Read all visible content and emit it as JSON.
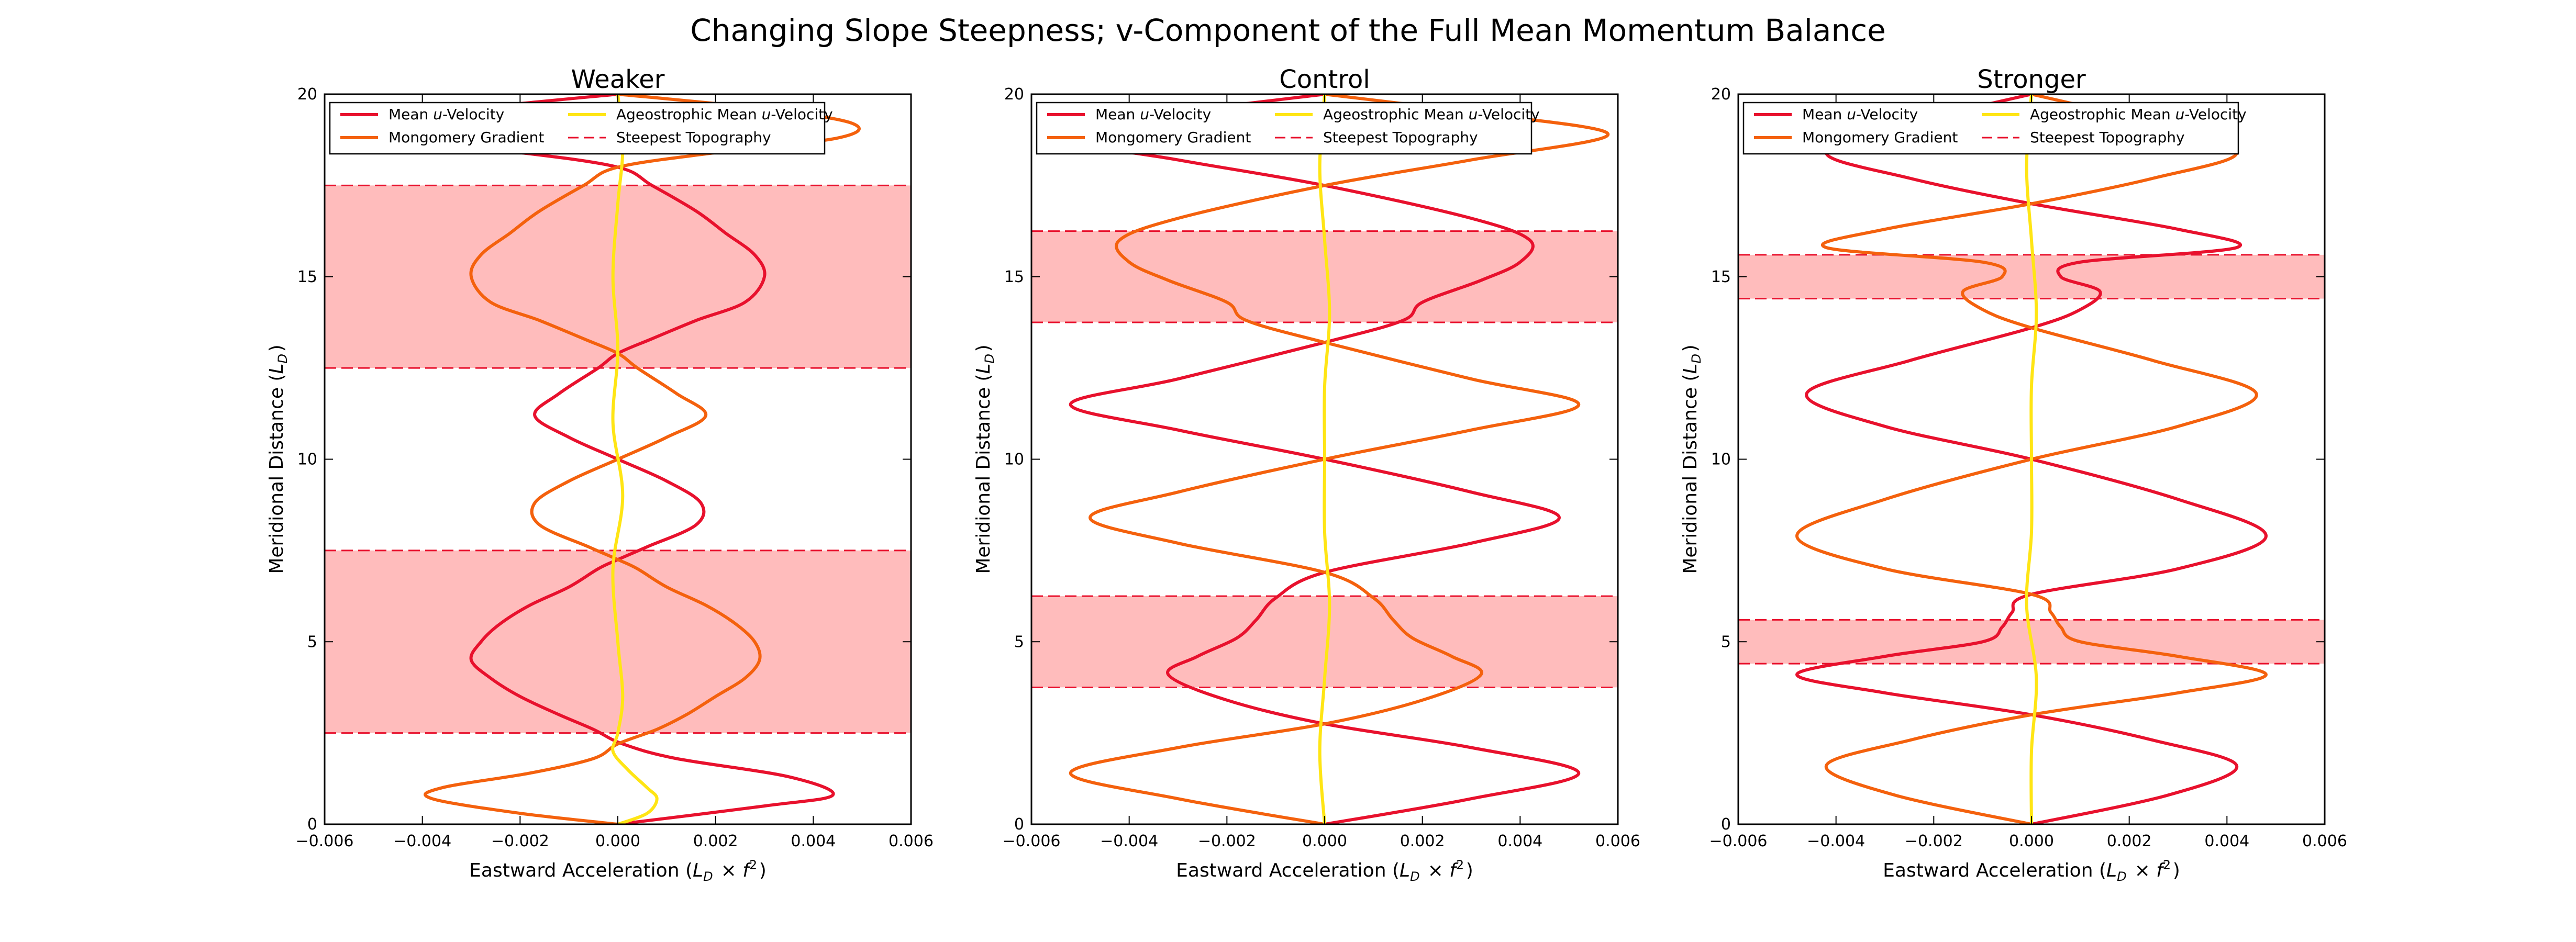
{
  "figure_title": "Changing Slope Steepness; v-Component of the Full Mean Momentum Balance",
  "colors": {
    "mean_u_velocity": "#e8112d",
    "montgomery_gradient": "#f4610d",
    "ageostrophic_mean_u_velocity": "#ffe514",
    "steepest_topography": "#e8112d",
    "band_fill": "#ffbcbc"
  },
  "chart_data": [
    {
      "type": "line",
      "title": "Weaker",
      "xlabel": "Eastward Acceleration (L_D × f²)",
      "ylabel": "Meridional Distance (L_D)",
      "xlim": [
        -0.006,
        0.006
      ],
      "ylim": [
        0,
        20
      ],
      "xticks": [
        "−0.006",
        "−0.004",
        "−0.002",
        "0.000",
        "0.002",
        "0.004",
        "0.006"
      ],
      "yticks": [
        "0",
        "5",
        "10",
        "15",
        "20"
      ],
      "legend_position": "upper-left",
      "legend": [
        "Mean u-Velocity",
        "Mongomery Gradient",
        "Ageostrophic Mean u-Velocity",
        "Steepest Topography"
      ],
      "steepest_topography_bands": [
        [
          2.5,
          7.5
        ],
        [
          12.5,
          17.5
        ]
      ],
      "series": [
        {
          "name": "Mean u-Velocity",
          "y": [
            0,
            0.5,
            0.8,
            1.3,
            1.8,
            2.2,
            2.6,
            3.0,
            3.5,
            4.0,
            4.5,
            5.0,
            5.5,
            6.0,
            6.5,
            7.0,
            7.25,
            7.6,
            8.2,
            8.8,
            9.4,
            10.0,
            10.6,
            11.2,
            11.8,
            12.5,
            12.9,
            13.3,
            13.8,
            14.3,
            15.0,
            15.6,
            16.2,
            16.8,
            17.5,
            18.0,
            18.4,
            18.8,
            19.2,
            19.6,
            20.0
          ],
          "x": [
            0.0,
            0.003,
            0.0044,
            0.0035,
            0.0012,
            0.0001,
            -0.0005,
            -0.0012,
            -0.002,
            -0.0026,
            -0.003,
            -0.0028,
            -0.0024,
            -0.0018,
            -0.001,
            -0.0004,
            0.0,
            0.0006,
            0.0016,
            0.0017,
            0.001,
            0.0,
            -0.001,
            -0.0017,
            -0.0012,
            -0.0004,
            0.0,
            0.0007,
            0.0016,
            0.0026,
            0.003,
            0.0028,
            0.0022,
            0.0016,
            0.0007,
            0.0,
            -0.002,
            -0.005,
            -0.005,
            -0.003,
            0.0
          ]
        },
        {
          "name": "Mongomery Gradient",
          "y": [
            0,
            0.3,
            0.7,
            1.0,
            1.4,
            1.8,
            2.2,
            2.6,
            3.0,
            3.5,
            4.0,
            4.5,
            5.0,
            5.5,
            6.0,
            6.5,
            7.0,
            7.25,
            7.6,
            8.2,
            8.8,
            9.4,
            10.0,
            10.6,
            11.2,
            11.8,
            12.5,
            12.9,
            13.3,
            13.8,
            14.3,
            15.0,
            15.6,
            16.2,
            16.8,
            17.5,
            18.0,
            18.4,
            18.8,
            19.2,
            19.6,
            20.0
          ],
          "x": [
            0.0,
            -0.002,
            -0.0038,
            -0.0036,
            -0.0018,
            -0.0005,
            0.0,
            0.0008,
            0.0014,
            0.002,
            0.0026,
            0.0029,
            0.0028,
            0.0024,
            0.0018,
            0.001,
            0.0004,
            0.0,
            -0.0006,
            -0.0016,
            -0.0017,
            -0.001,
            0.0,
            0.001,
            0.0018,
            0.0012,
            0.0004,
            0.0,
            -0.0007,
            -0.0016,
            -0.0026,
            -0.003,
            -0.0028,
            -0.0022,
            -0.0016,
            -0.0007,
            0.0,
            0.002,
            0.0045,
            0.0048,
            0.003,
            0.0
          ]
        },
        {
          "name": "Ageostrophic Mean u-Velocity",
          "y": [
            0,
            0.3,
            0.7,
            1.0,
            1.5,
            2.0,
            2.5,
            3.5,
            5.0,
            7.0,
            9.0,
            11.0,
            13.0,
            15.0,
            17.0,
            18.5,
            20.0
          ],
          "x": [
            0.0,
            0.0006,
            0.0008,
            0.0006,
            0.0002,
            -0.0001,
            0.0,
            0.0001,
            0.0,
            -0.0001,
            0.0001,
            -0.0001,
            0.0,
            -0.0001,
            0.0,
            0.0001,
            0.0
          ]
        }
      ]
    },
    {
      "type": "line",
      "title": "Control",
      "xlabel": "Eastward Acceleration (L_D × f²)",
      "ylabel": "Meridional Distance (L_D)",
      "xlim": [
        -0.006,
        0.006
      ],
      "ylim": [
        0,
        20
      ],
      "xticks": [
        "−0.006",
        "−0.004",
        "−0.002",
        "0.000",
        "0.002",
        "0.004",
        "0.006"
      ],
      "yticks": [
        "0",
        "5",
        "10",
        "15",
        "20"
      ],
      "legend_position": "upper-left",
      "legend": [
        "Mean u-Velocity",
        "Mongomery Gradient",
        "Ageostrophic Mean u-Velocity",
        "Steepest Topography"
      ],
      "steepest_topography_bands": [
        [
          3.75,
          6.25
        ],
        [
          13.75,
          16.25
        ]
      ],
      "series": [
        {
          "name": "Mean u-Velocity",
          "y": [
            0,
            0.7,
            1.4,
            2.1,
            2.75,
            3.4,
            4.1,
            4.6,
            5.1,
            5.6,
            6.2,
            6.9,
            7.7,
            8.4,
            9.1,
            10.0,
            10.8,
            11.5,
            12.2,
            13.2,
            13.8,
            14.3,
            14.9,
            15.4,
            16.0,
            16.6,
            17.5,
            18.2,
            18.9,
            19.5,
            20.0
          ],
          "x": [
            0.0,
            0.003,
            0.0052,
            0.003,
            0.0,
            -0.002,
            -0.0032,
            -0.0026,
            -0.0018,
            -0.0014,
            -0.001,
            0.0,
            0.003,
            0.0048,
            0.003,
            0.0,
            -0.003,
            -0.0052,
            -0.003,
            0.0,
            0.0016,
            0.002,
            0.0032,
            0.004,
            0.0042,
            0.003,
            0.0,
            -0.003,
            -0.0058,
            -0.003,
            0.0
          ]
        },
        {
          "name": "Mongomery Gradient",
          "y": [
            0,
            0.7,
            1.4,
            2.1,
            2.75,
            3.4,
            4.1,
            4.6,
            5.1,
            5.6,
            6.2,
            6.9,
            7.7,
            8.4,
            9.1,
            10.0,
            10.8,
            11.5,
            12.2,
            13.2,
            13.8,
            14.3,
            14.9,
            15.4,
            16.0,
            16.6,
            17.5,
            18.2,
            18.9,
            19.5,
            20.0
          ],
          "x": [
            0.0,
            -0.003,
            -0.0052,
            -0.003,
            0.0,
            0.002,
            0.0032,
            0.0026,
            0.0018,
            0.0014,
            0.001,
            0.0,
            -0.003,
            -0.0048,
            -0.003,
            0.0,
            0.003,
            0.0052,
            0.003,
            0.0,
            -0.0016,
            -0.002,
            -0.0032,
            -0.004,
            -0.0042,
            -0.003,
            0.0,
            0.003,
            0.0058,
            0.003,
            0.0
          ]
        },
        {
          "name": "Ageostrophic Mean u-Velocity",
          "y": [
            0,
            2.0,
            4.0,
            6.0,
            8.0,
            10.0,
            12.0,
            14.0,
            16.0,
            18.0,
            20.0
          ],
          "x": [
            0.0,
            -0.0001,
            0.0,
            0.0001,
            0.0,
            0.0,
            0.0,
            0.0001,
            0.0,
            -0.0001,
            0.0
          ]
        }
      ]
    },
    {
      "type": "line",
      "title": "Stronger",
      "xlabel": "Eastward Acceleration (L_D × f²)",
      "ylabel": "Meridional Distance (L_D)",
      "xlim": [
        -0.006,
        0.006
      ],
      "ylim": [
        0,
        20
      ],
      "xticks": [
        "−0.006",
        "−0.004",
        "−0.002",
        "0.000",
        "0.002",
        "0.004",
        "0.006"
      ],
      "yticks": [
        "0",
        "5",
        "10",
        "15",
        "20"
      ],
      "legend_position": "upper-left",
      "legend": [
        "Mean u-Velocity",
        "Mongomery Gradient",
        "Ageostrophic Mean u-Velocity",
        "Steepest Topography"
      ],
      "steepest_topography_bands": [
        [
          4.4,
          5.6
        ],
        [
          14.4,
          15.6
        ]
      ],
      "series": [
        {
          "name": "Mean u-Velocity",
          "y": [
            0,
            0.8,
            1.6,
            2.3,
            3.0,
            3.6,
            4.1,
            4.6,
            5.0,
            5.4,
            5.8,
            6.3,
            7.0,
            7.9,
            8.9,
            10.0,
            10.9,
            11.8,
            12.7,
            13.6,
            14.1,
            14.6,
            15.0,
            15.4,
            15.8,
            16.3,
            17.0,
            17.7,
            18.4,
            19.2,
            20.0
          ],
          "x": [
            0.0,
            0.0028,
            0.0042,
            0.0025,
            0.0,
            -0.003,
            -0.0048,
            -0.003,
            -0.001,
            -0.0006,
            -0.0004,
            0.0,
            0.003,
            0.0048,
            0.003,
            0.0,
            -0.003,
            -0.0046,
            -0.0025,
            0.0,
            0.001,
            0.0014,
            0.0006,
            0.001,
            0.0042,
            0.003,
            0.0,
            -0.0025,
            -0.0042,
            -0.0025,
            0.0
          ]
        },
        {
          "name": "Mongomery Gradient",
          "y": [
            0,
            0.8,
            1.6,
            2.3,
            3.0,
            3.6,
            4.1,
            4.6,
            5.0,
            5.4,
            5.8,
            6.3,
            7.0,
            7.9,
            8.9,
            10.0,
            10.9,
            11.8,
            12.7,
            13.6,
            14.1,
            14.6,
            15.0,
            15.4,
            15.8,
            16.3,
            17.0,
            17.7,
            18.4,
            19.2,
            20.0
          ],
          "x": [
            0.0,
            -0.0028,
            -0.0042,
            -0.0025,
            0.0,
            0.003,
            0.0048,
            0.003,
            0.001,
            0.0006,
            0.0004,
            0.0,
            -0.003,
            -0.0048,
            -0.003,
            0.0,
            0.003,
            0.0046,
            0.0025,
            0.0,
            -0.001,
            -0.0014,
            -0.0006,
            -0.001,
            -0.0042,
            -0.003,
            0.0,
            0.0025,
            0.0042,
            0.0025,
            0.0
          ]
        },
        {
          "name": "Ageostrophic Mean u-Velocity",
          "y": [
            0,
            2.0,
            4.0,
            6.0,
            8.0,
            10.0,
            12.0,
            14.0,
            16.0,
            18.0,
            20.0
          ],
          "x": [
            0.0,
            0.0,
            0.0001,
            -0.0001,
            0.0,
            0.0,
            0.0,
            0.0001,
            0.0,
            -0.0001,
            0.0
          ]
        }
      ]
    }
  ]
}
